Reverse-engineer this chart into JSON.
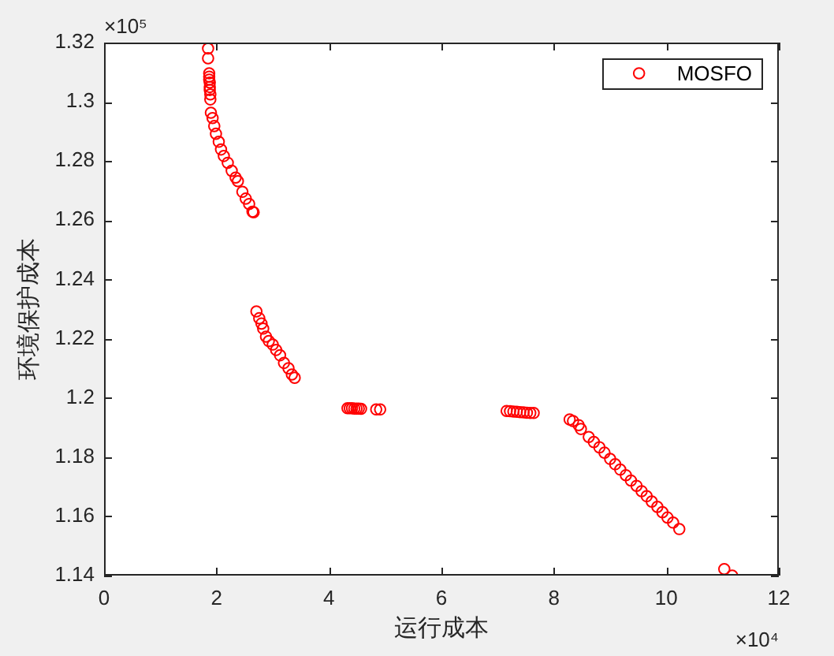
{
  "chart_data": {
    "type": "scatter",
    "xlabel": "运行成本",
    "ylabel": "环境保护成本",
    "annotations": [
      "×10⁵",
      "×10⁴"
    ],
    "x": [
      1.85,
      1.85,
      1.87,
      1.87,
      1.87,
      1.88,
      1.88,
      1.88,
      1.89,
      1.89,
      1.9,
      1.93,
      1.96,
      1.99,
      2.04,
      2.08,
      2.13,
      2.2,
      2.27,
      2.34,
      2.38,
      2.46,
      2.52,
      2.58,
      2.64,
      2.66,
      2.71,
      2.76,
      2.8,
      2.83,
      2.88,
      2.93,
      3.0,
      3.06,
      3.13,
      3.2,
      3.28,
      3.34,
      3.39,
      4.33,
      4.37,
      4.41,
      4.45,
      4.49,
      4.53,
      4.57,
      4.84,
      4.91,
      7.16,
      7.22,
      7.28,
      7.34,
      7.4,
      7.46,
      7.52,
      7.58,
      7.64,
      8.28,
      8.34,
      8.44,
      8.48,
      8.62,
      8.71,
      8.81,
      8.9,
      9.0,
      9.09,
      9.18,
      9.28,
      9.37,
      9.47,
      9.56,
      9.65,
      9.74,
      9.84,
      9.93,
      10.02,
      10.12,
      10.23,
      11.03,
      11.17
    ],
    "series": [
      {
        "name": "MOSFO",
        "color": "#ff0000",
        "values": [
          1.318,
          1.3147,
          1.3096,
          1.3085,
          1.3075,
          1.3065,
          1.305,
          1.304,
          1.3025,
          1.3008,
          1.2963,
          1.2945,
          1.2918,
          1.2892,
          1.2865,
          1.2839,
          1.2817,
          1.2794,
          1.2767,
          1.2744,
          1.2732,
          1.2696,
          1.2673,
          1.2655,
          1.2629,
          1.2627,
          1.2292,
          1.2269,
          1.2251,
          1.2234,
          1.2207,
          1.2192,
          1.218,
          1.2162,
          1.2144,
          1.2118,
          1.21,
          1.2079,
          1.2068,
          1.1965,
          1.1965,
          1.1965,
          1.1964,
          1.1964,
          1.1964,
          1.1963,
          1.1961,
          1.1961,
          1.1956,
          1.1955,
          1.1954,
          1.1953,
          1.1952,
          1.1951,
          1.195,
          1.1949,
          1.1949,
          1.1927,
          1.1922,
          1.1908,
          1.1895,
          1.1868,
          1.1851,
          1.1833,
          1.1815,
          1.1794,
          1.1776,
          1.1758,
          1.1739,
          1.1721,
          1.1703,
          1.1685,
          1.1668,
          1.165,
          1.1632,
          1.1614,
          1.1596,
          1.1579,
          1.1557,
          1.1422,
          1.14
        ]
      }
    ],
    "xlim": [
      0,
      12
    ],
    "xticks": [
      0,
      2,
      4,
      6,
      8,
      10,
      12
    ],
    "ylim": [
      1.14,
      1.32
    ],
    "yticks": [
      1.14,
      1.16,
      1.18,
      1.2,
      1.22,
      1.24,
      1.26,
      1.28,
      1.3,
      1.32
    ],
    "marker": "circle",
    "legend": "top right"
  }
}
